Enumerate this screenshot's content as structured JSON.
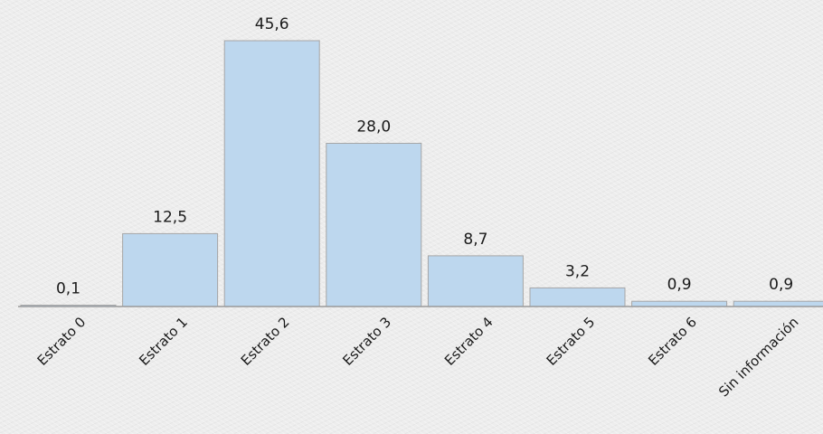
{
  "chart_data": {
    "type": "bar",
    "categories": [
      "Estrato 0",
      "Estrato 1",
      "Estrato 2",
      "Estrato 3",
      "Estrato 4",
      "Estrato 5",
      "Estrato 6",
      "Sin información"
    ],
    "values": [
      0.1,
      12.5,
      45.6,
      28.0,
      8.7,
      3.2,
      0.9,
      0.9
    ],
    "data_labels": [
      "0,1",
      "12,5",
      "45,6",
      "28,0",
      "8,7",
      "3,2",
      "0,9",
      "0,9"
    ],
    "ylim": [
      0,
      45.6
    ],
    "grid": false,
    "colors": {
      "bar_fill": "#bdd7ee",
      "bar_stroke": "#a6a6a6",
      "axis": "#9a9a9a"
    }
  }
}
